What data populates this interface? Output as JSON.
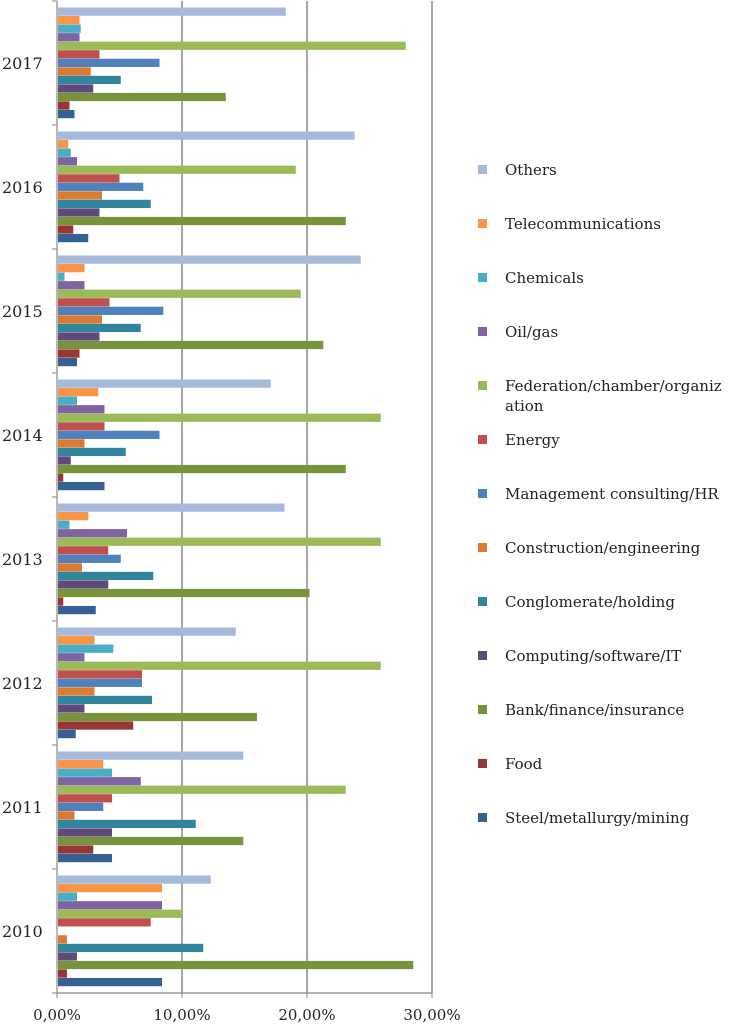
{
  "chart_data": {
    "type": "bar",
    "orientation": "horizontal",
    "title": "",
    "xlabel": "",
    "ylabel": "",
    "xlim": [
      0,
      30
    ],
    "x_ticks": [
      "0,00%",
      "10,00%",
      "20,00%",
      "30,00%"
    ],
    "grid": true,
    "legend_position": "right",
    "categories": [
      "2017",
      "2016",
      "2015",
      "2014",
      "2013",
      "2012",
      "2011",
      "2010"
    ],
    "series": [
      {
        "name": "Others",
        "color": "#a7b9da",
        "values": [
          18.3,
          23.8,
          24.3,
          17.1,
          18.2,
          14.3,
          14.9,
          12.3
        ]
      },
      {
        "name": "Telecommunications",
        "color": "#f79646",
        "values": [
          1.8,
          0.9,
          2.2,
          3.3,
          2.5,
          3.0,
          3.7,
          8.4
        ]
      },
      {
        "name": "Chemicals",
        "color": "#4bacc6",
        "values": [
          1.9,
          1.1,
          0.6,
          1.6,
          1.0,
          4.5,
          4.4,
          1.6
        ]
      },
      {
        "name": "Oil/gas",
        "color": "#8064a2",
        "values": [
          1.8,
          1.6,
          2.2,
          3.8,
          5.6,
          2.2,
          6.7,
          8.4
        ]
      },
      {
        "name": "Federation/chamber/organization",
        "color": "#9bbb59",
        "values": [
          27.9,
          19.1,
          19.5,
          25.9,
          25.9,
          25.9,
          23.1,
          10.0
        ]
      },
      {
        "name": "Energy",
        "color": "#c0504d",
        "values": [
          3.4,
          5.0,
          4.2,
          3.8,
          4.1,
          6.8,
          4.4,
          7.5
        ]
      },
      {
        "name": "Management consulting/HR",
        "color": "#4f81bd",
        "values": [
          8.2,
          6.9,
          8.5,
          8.2,
          5.1,
          6.8,
          3.7,
          0.0
        ]
      },
      {
        "name": "Construction/engineering",
        "color": "#db7a33",
        "values": [
          2.7,
          3.6,
          3.6,
          2.2,
          2.0,
          3.0,
          1.4,
          0.8
        ]
      },
      {
        "name": "Conglomerate/holding",
        "color": "#31859c",
        "values": [
          5.1,
          7.5,
          6.7,
          5.5,
          7.7,
          7.6,
          11.1,
          11.7
        ]
      },
      {
        "name": "Computing/software/IT",
        "color": "#604a7b",
        "values": [
          2.9,
          3.4,
          3.4,
          1.1,
          4.1,
          2.2,
          4.4,
          1.6
        ]
      },
      {
        "name": "Bank/finance/insurance",
        "color": "#77933c",
        "values": [
          13.5,
          23.1,
          21.3,
          23.1,
          20.2,
          16.0,
          14.9,
          28.5
        ]
      },
      {
        "name": "Food",
        "color": "#953735",
        "values": [
          1.0,
          1.3,
          1.8,
          0.5,
          0.5,
          6.1,
          2.9,
          0.8
        ]
      },
      {
        "name": "Steel/metallurgy/mining",
        "color": "#376092",
        "values": [
          1.4,
          2.5,
          1.6,
          3.8,
          3.1,
          1.5,
          4.4,
          8.4
        ]
      }
    ]
  }
}
